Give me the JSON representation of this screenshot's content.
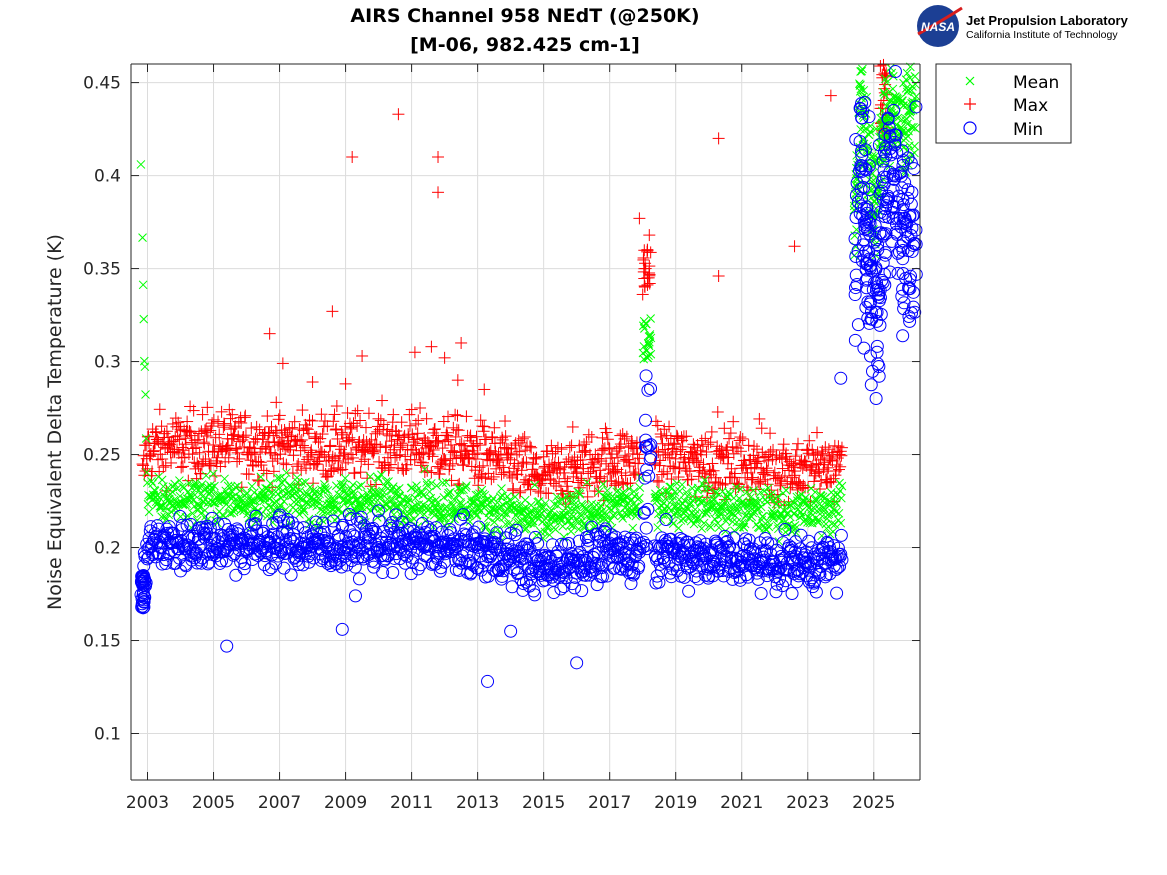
{
  "logo": {
    "badge_text": "NASA",
    "org_name": "Jet Propulsion Laboratory",
    "org_sub": "California Institute of Technology"
  },
  "chart_data": {
    "type": "scatter",
    "title": "AIRS Channel 958 NEdT (@250K)",
    "subtitle": "[M-06, 982.425 cm-1]",
    "xlabel": "",
    "ylabel": "Noise Equivalent Delta Temperature (K)",
    "xlim": [
      2002.5,
      2026.4
    ],
    "ylim": [
      0.075,
      0.46
    ],
    "x_ticks": [
      2003,
      2005,
      2007,
      2009,
      2011,
      2013,
      2015,
      2017,
      2019,
      2021,
      2023,
      2025
    ],
    "x_tick_labels": [
      "2003",
      "2005",
      "2007",
      "2009",
      "2011",
      "2013",
      "2015",
      "2017",
      "2019",
      "2021",
      "2023",
      "2025"
    ],
    "y_ticks": [
      0.1,
      0.15,
      0.2,
      0.25,
      0.3,
      0.35,
      0.4,
      0.45
    ],
    "y_tick_labels": [
      "0.1",
      "0.15",
      "0.2",
      "0.25",
      "0.3",
      "0.35",
      "0.4",
      "0.45"
    ],
    "grid": true,
    "legend_position": "outside-top-right",
    "legend": [
      "Mean",
      "Max",
      "Min"
    ],
    "series": [
      {
        "name": "Mean",
        "marker": "x",
        "color": "#00ff00",
        "x": [
          2002.8,
          2003.0,
          2004.0,
          2005.0,
          2006.0,
          2007.0,
          2008.0,
          2009.0,
          2010.0,
          2011.0,
          2012.0,
          2013.0,
          2014.0,
          2015.0,
          2016.0,
          2017.0,
          2017.9,
          2018.1,
          2018.3,
          2019.0,
          2020.0,
          2021.0,
          2022.0,
          2023.0,
          2024.0,
          2024.6,
          2025.0,
          2025.5,
          2026.0,
          2026.3
        ],
        "values": [
          0.406,
          0.225,
          0.226,
          0.226,
          0.225,
          0.226,
          0.225,
          0.225,
          0.226,
          0.225,
          0.224,
          0.222,
          0.219,
          0.214,
          0.218,
          0.222,
          0.222,
          0.31,
          0.226,
          0.224,
          0.222,
          0.22,
          0.219,
          0.219,
          0.221,
          0.44,
          0.39,
          0.44,
          0.43,
          0.44
        ]
      },
      {
        "name": "Max",
        "marker": "+",
        "color": "#ff0000",
        "x": [
          2002.8,
          2003.0,
          2004.0,
          2005.0,
          2006.0,
          2007.0,
          2008.0,
          2009.0,
          2010.0,
          2011.0,
          2012.0,
          2013.0,
          2014.0,
          2015.0,
          2016.0,
          2017.0,
          2017.9,
          2018.1,
          2018.3,
          2019.0,
          2020.0,
          2021.0,
          2022.0,
          2023.0,
          2024.0,
          2025.3
        ],
        "values": [
          0.23,
          0.253,
          0.255,
          0.256,
          0.255,
          0.256,
          0.254,
          0.254,
          0.256,
          0.255,
          0.253,
          0.25,
          0.245,
          0.237,
          0.243,
          0.247,
          0.247,
          0.348,
          0.25,
          0.249,
          0.247,
          0.245,
          0.243,
          0.242,
          0.245,
          0.45
        ],
        "outliers": {
          "x": [
            2006.7,
            2007.1,
            2008.0,
            2008.6,
            2009.0,
            2009.2,
            2009.5,
            2010.6,
            2011.1,
            2011.6,
            2011.8,
            2011.8,
            2012.0,
            2012.4,
            2012.5,
            2013.2,
            2017.9,
            2018.2,
            2020.3,
            2020.3,
            2022.6,
            2023.7
          ],
          "values": [
            0.315,
            0.299,
            0.289,
            0.327,
            0.288,
            0.41,
            0.303,
            0.433,
            0.305,
            0.308,
            0.41,
            0.391,
            0.302,
            0.29,
            0.31,
            0.285,
            0.377,
            0.368,
            0.42,
            0.346,
            0.362,
            0.443
          ]
        }
      },
      {
        "name": "Min",
        "marker": "o",
        "color": "#0000ff",
        "x": [
          2002.8,
          2003.0,
          2004.0,
          2005.0,
          2006.0,
          2007.0,
          2008.0,
          2009.0,
          2010.0,
          2011.0,
          2012.0,
          2013.0,
          2014.0,
          2015.0,
          2016.0,
          2017.0,
          2017.9,
          2018.1,
          2018.3,
          2019.0,
          2020.0,
          2021.0,
          2022.0,
          2023.0,
          2024.0,
          2024.6,
          2025.0,
          2025.5,
          2026.0,
          2026.3
        ],
        "values": [
          0.172,
          0.201,
          0.202,
          0.203,
          0.202,
          0.202,
          0.201,
          0.201,
          0.202,
          0.201,
          0.2,
          0.198,
          0.195,
          0.188,
          0.193,
          0.196,
          0.196,
          0.25,
          0.197,
          0.196,
          0.195,
          0.193,
          0.192,
          0.192,
          0.193,
          0.41,
          0.33,
          0.41,
          0.36,
          0.37
        ],
        "outliers": {
          "x": [
            2005.4,
            2008.9,
            2009.3,
            2013.3,
            2014.0,
            2016.0,
            2024.0,
            2024.9,
            2025.1
          ],
          "values": [
            0.147,
            0.156,
            0.174,
            0.128,
            0.155,
            0.138,
            0.291,
            0.303,
            0.305
          ]
        }
      }
    ]
  }
}
